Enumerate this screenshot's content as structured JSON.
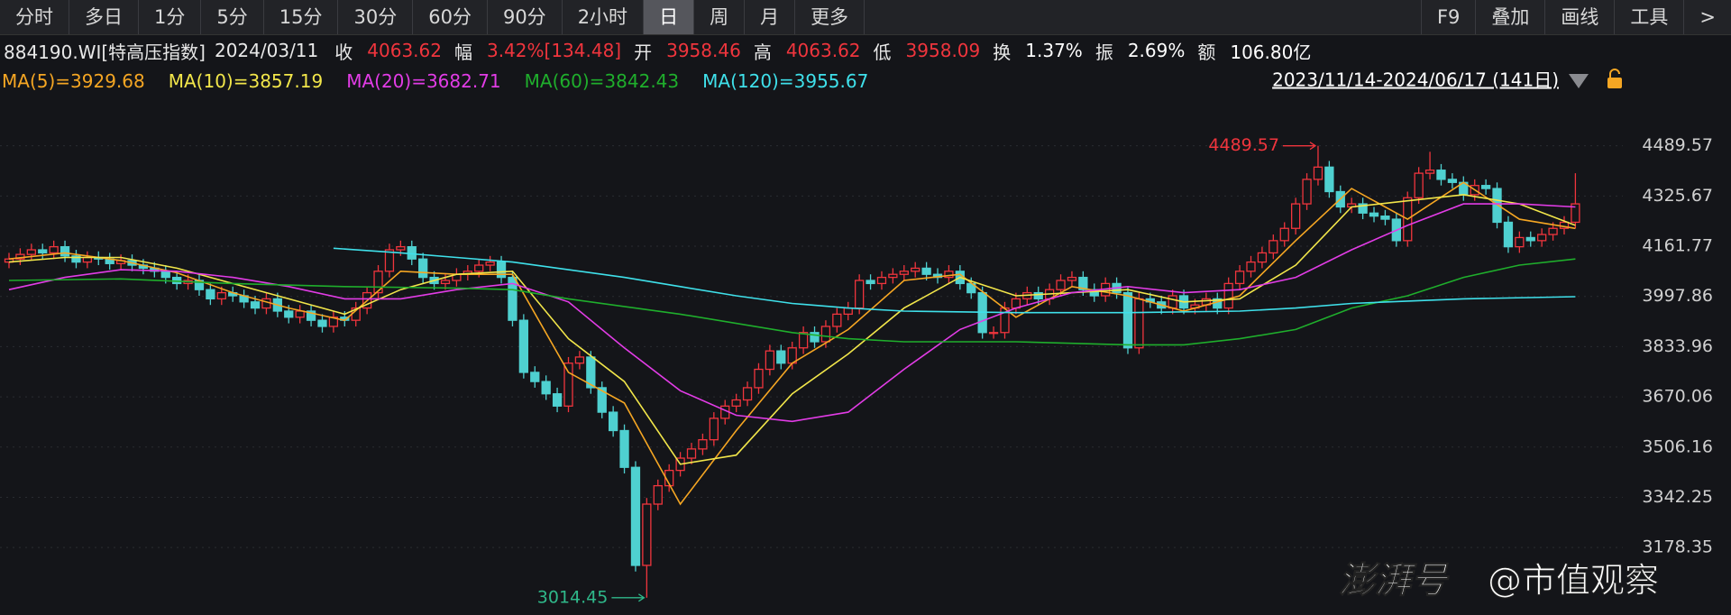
{
  "toolbar": {
    "left": [
      "分时",
      "多日",
      "1分",
      "5分",
      "15分",
      "30分",
      "60分",
      "90分",
      "2小时",
      "日",
      "周",
      "月",
      "更多"
    ],
    "selected_index": 9,
    "right": [
      "F9",
      "叠加",
      "画线",
      "工具",
      ">"
    ]
  },
  "info": {
    "code": "884190.WI[特高压指数]",
    "date": "2024/03/11",
    "fields": [
      {
        "label": "收",
        "value": "4063.62",
        "color": "#f0353d"
      },
      {
        "label": "幅",
        "value": "3.42%[134.48]",
        "color": "#f0353d"
      },
      {
        "label": "开",
        "value": "3958.46",
        "color": "#f0353d"
      },
      {
        "label": "高",
        "value": "4063.62",
        "color": "#f0353d"
      },
      {
        "label": "低",
        "value": "3958.09",
        "color": "#f0353d"
      },
      {
        "label": "换",
        "value": "1.37%",
        "color": "#ffffff"
      },
      {
        "label": "振",
        "value": "2.69%",
        "color": "#ffffff"
      },
      {
        "label": "额",
        "value": "106.80亿",
        "color": "#ffffff"
      }
    ]
  },
  "chart_data": {
    "type": "candlestick",
    "range_label": "2023/11/14-2024/06/17 (141日)",
    "up_color": "#f0353d",
    "down_color": "#4fd0d0",
    "ylim": [
      2958,
      4624
    ],
    "yticks": [
      4489.57,
      4325.67,
      4161.77,
      3997.86,
      3833.96,
      3670.06,
      3506.16,
      3342.25,
      3178.35
    ],
    "grid": true,
    "open": [
      4110,
      4120,
      4135,
      4150,
      4140,
      4160,
      4130,
      4110,
      4125,
      4120,
      4105,
      4115,
      4100,
      4090,
      4080,
      4060,
      4040,
      4050,
      4020,
      3990,
      4010,
      4000,
      3980,
      3960,
      3990,
      3950,
      3930,
      3950,
      3920,
      3900,
      3930,
      3920,
      3960,
      4010,
      4080,
      4150,
      4160,
      4120,
      4060,
      4040,
      4050,
      4070,
      4080,
      4100,
      4110,
      4060,
      3920,
      3750,
      3720,
      3680,
      3640,
      3780,
      3800,
      3700,
      3620,
      3560,
      3440,
      3120,
      3320,
      3380,
      3430,
      3470,
      3500,
      3530,
      3600,
      3640,
      3660,
      3700,
      3760,
      3820,
      3780,
      3830,
      3880,
      3850,
      3900,
      3940,
      3960,
      4050,
      4040,
      4060,
      4070,
      4080,
      4090,
      4070,
      4060,
      4080,
      4040,
      4010,
      3880,
      3880,
      3960,
      3990,
      4010,
      3990,
      4020,
      4050,
      4060,
      4020,
      4000,
      4040,
      4010,
      3830,
      3990,
      3980,
      3960,
      4000,
      3960,
      3970,
      3990,
      3960,
      4040,
      4080,
      4110,
      4140,
      4180,
      4220,
      4300,
      4380,
      4420,
      4340,
      4290,
      4300,
      4270,
      4260,
      4250,
      4180,
      4320,
      4400,
      4410,
      4380,
      4370,
      4330,
      4360,
      4350,
      4240,
      4160,
      4190,
      4180,
      4200,
      4220,
      4240
    ],
    "high": [
      4140,
      4155,
      4170,
      4170,
      4180,
      4180,
      4150,
      4145,
      4145,
      4140,
      4135,
      4135,
      4120,
      4110,
      4100,
      4080,
      4070,
      4070,
      4040,
      4030,
      4030,
      4020,
      4000,
      4010,
      4010,
      3970,
      3970,
      3970,
      3940,
      3950,
      3950,
      3980,
      4030,
      4100,
      4170,
      4180,
      4180,
      4140,
      4080,
      4070,
      4090,
      4100,
      4120,
      4130,
      4130,
      4080,
      3940,
      3770,
      3740,
      3700,
      3800,
      3820,
      3820,
      3720,
      3640,
      3580,
      3460,
      3340,
      3400,
      3450,
      3490,
      3520,
      3550,
      3620,
      3660,
      3680,
      3720,
      3780,
      3840,
      3840,
      3850,
      3900,
      3900,
      3920,
      3960,
      3980,
      4070,
      4070,
      4080,
      4090,
      4100,
      4110,
      4110,
      4090,
      4100,
      4100,
      4060,
      4030,
      3900,
      3980,
      4010,
      4030,
      4030,
      4040,
      4070,
      4080,
      4080,
      4040,
      4060,
      4060,
      4030,
      4010,
      4010,
      4000,
      4020,
      4020,
      3990,
      4010,
      4010,
      4060,
      4100,
      4130,
      4160,
      4200,
      4240,
      4320,
      4400,
      4489.57,
      4440,
      4360,
      4320,
      4320,
      4290,
      4280,
      4270,
      4340,
      4420,
      4470,
      4430,
      4400,
      4390,
      4380,
      4380,
      4370,
      4260,
      4210,
      4210,
      4220,
      4240,
      4260,
      4400
    ],
    "low": [
      4090,
      4100,
      4115,
      4120,
      4120,
      4110,
      4090,
      4090,
      4100,
      4085,
      4085,
      4080,
      4070,
      4060,
      4040,
      4020,
      4020,
      4000,
      3970,
      3970,
      3980,
      3960,
      3940,
      3940,
      3930,
      3910,
      3910,
      3900,
      3880,
      3880,
      3900,
      3900,
      3940,
      3990,
      4060,
      4130,
      4100,
      4040,
      4020,
      4020,
      4030,
      4050,
      4060,
      4080,
      4040,
      3900,
      3730,
      3700,
      3660,
      3620,
      3620,
      3760,
      3680,
      3600,
      3540,
      3420,
      3100,
      3014.45,
      3300,
      3360,
      3410,
      3450,
      3480,
      3510,
      3580,
      3620,
      3640,
      3680,
      3740,
      3760,
      3760,
      3810,
      3830,
      3830,
      3880,
      3920,
      3940,
      4020,
      4020,
      4040,
      4050,
      4060,
      4050,
      4040,
      4040,
      4020,
      3990,
      3860,
      3860,
      3860,
      3940,
      3970,
      3970,
      3970,
      4000,
      4030,
      4000,
      3980,
      3980,
      3990,
      3810,
      3810,
      3960,
      3940,
      3940,
      3940,
      3940,
      3950,
      3940,
      3940,
      4020,
      4060,
      4090,
      4120,
      4160,
      4200,
      4280,
      4360,
      4320,
      4270,
      4270,
      4250,
      4240,
      4230,
      4160,
      4160,
      4300,
      4380,
      4360,
      4350,
      4310,
      4310,
      4330,
      4220,
      4140,
      4140,
      4160,
      4160,
      4180,
      4200,
      4220
    ],
    "close": [
      4120,
      4135,
      4150,
      4140,
      4160,
      4130,
      4110,
      4125,
      4120,
      4105,
      4115,
      4100,
      4090,
      4080,
      4060,
      4040,
      4050,
      4020,
      3990,
      4010,
      4000,
      3980,
      3960,
      3990,
      3950,
      3930,
      3950,
      3920,
      3900,
      3930,
      3920,
      3960,
      4010,
      4080,
      4150,
      4160,
      4120,
      4060,
      4040,
      4050,
      4070,
      4080,
      4100,
      4110,
      4060,
      3920,
      3750,
      3720,
      3680,
      3640,
      3780,
      3800,
      3700,
      3620,
      3560,
      3440,
      3120,
      3320,
      3380,
      3430,
      3470,
      3500,
      3530,
      3600,
      3640,
      3660,
      3700,
      3760,
      3820,
      3780,
      3830,
      3880,
      3850,
      3900,
      3940,
      3960,
      4050,
      4040,
      4060,
      4070,
      4080,
      4090,
      4070,
      4060,
      4080,
      4040,
      4010,
      3880,
      3880,
      3960,
      3990,
      4010,
      3990,
      4020,
      4050,
      4060,
      4020,
      4000,
      4040,
      4010,
      3830,
      3990,
      3980,
      3960,
      4000,
      3960,
      3970,
      3990,
      3960,
      4040,
      4080,
      4110,
      4140,
      4180,
      4220,
      4300,
      4380,
      4420,
      4340,
      4290,
      4300,
      4270,
      4260,
      4250,
      4180,
      4320,
      4400,
      4410,
      4380,
      4370,
      4330,
      4360,
      4350,
      4240,
      4160,
      4190,
      4180,
      4200,
      4220,
      4240,
      4300
    ],
    "series": [
      {
        "name": "MA(5)=3929.68",
        "color": "#f5a623",
        "x": [
          0,
          5,
          10,
          15,
          20,
          25,
          30,
          35,
          40,
          45,
          50,
          55,
          60,
          65,
          70,
          75,
          80,
          85,
          90,
          95,
          100,
          105,
          110,
          115,
          120,
          125,
          130,
          135,
          140
        ],
        "values": [
          4120,
          4140,
          4115,
          4075,
          4010,
          3960,
          3920,
          4080,
          4070,
          4070,
          3750,
          3650,
          3320,
          3560,
          3780,
          3890,
          4050,
          4070,
          3930,
          4030,
          4000,
          3950,
          4000,
          4180,
          4350,
          4250,
          4370,
          4250,
          4220
        ]
      },
      {
        "name": "MA(10)=3857.19",
        "color": "#f2e64a",
        "x": [
          0,
          5,
          10,
          15,
          20,
          25,
          30,
          35,
          40,
          45,
          50,
          55,
          60,
          65,
          70,
          75,
          80,
          85,
          90,
          95,
          100,
          105,
          110,
          115,
          120,
          125,
          130,
          135,
          140
        ],
        "values": [
          4110,
          4125,
          4125,
          4090,
          4040,
          3990,
          3940,
          4020,
          4070,
          4080,
          3860,
          3720,
          3450,
          3480,
          3680,
          3810,
          3960,
          4060,
          4000,
          4010,
          4020,
          3980,
          3990,
          4100,
          4290,
          4310,
          4330,
          4300,
          4230
        ]
      },
      {
        "name": "MA(20)=3682.71",
        "color": "#e23ce6",
        "x": [
          0,
          5,
          10,
          15,
          20,
          25,
          30,
          35,
          40,
          45,
          50,
          55,
          60,
          65,
          70,
          75,
          80,
          85,
          90,
          95,
          100,
          105,
          110,
          115,
          120,
          125,
          130,
          135,
          140
        ],
        "values": [
          4020,
          4060,
          4085,
          4080,
          4060,
          4030,
          3990,
          3990,
          4020,
          4040,
          3980,
          3830,
          3690,
          3610,
          3590,
          3620,
          3760,
          3890,
          3960,
          4010,
          4030,
          4010,
          4020,
          4060,
          4150,
          4230,
          4300,
          4300,
          4290
        ]
      },
      {
        "name": "MA(60)=3842.43",
        "color": "#1fae2c",
        "x": [
          0,
          10,
          20,
          30,
          40,
          45,
          50,
          60,
          70,
          75,
          80,
          90,
          100,
          105,
          110,
          115,
          120,
          125,
          130,
          135,
          140
        ],
        "values": [
          4050,
          4055,
          4040,
          4030,
          4025,
          4020,
          3990,
          3940,
          3880,
          3860,
          3850,
          3850,
          3840,
          3840,
          3860,
          3890,
          3960,
          4000,
          4060,
          4100,
          4120
        ]
      },
      {
        "name": "MA(120)=3955.67",
        "color": "#3fe0ea",
        "x": [
          29,
          35,
          40,
          45,
          50,
          55,
          60,
          65,
          70,
          75,
          80,
          90,
          100,
          110,
          115,
          120,
          130,
          140
        ],
        "values": [
          4155,
          4140,
          4125,
          4110,
          4085,
          4060,
          4030,
          4000,
          3975,
          3960,
          3950,
          3945,
          3945,
          3950,
          3960,
          3975,
          3990,
          3997
        ]
      }
    ],
    "annotations": {
      "max_label": "4489.57",
      "min_label": "3014.45"
    }
  },
  "watermark": {
    "brand": "澎湃号",
    "author": "@市值观察"
  }
}
